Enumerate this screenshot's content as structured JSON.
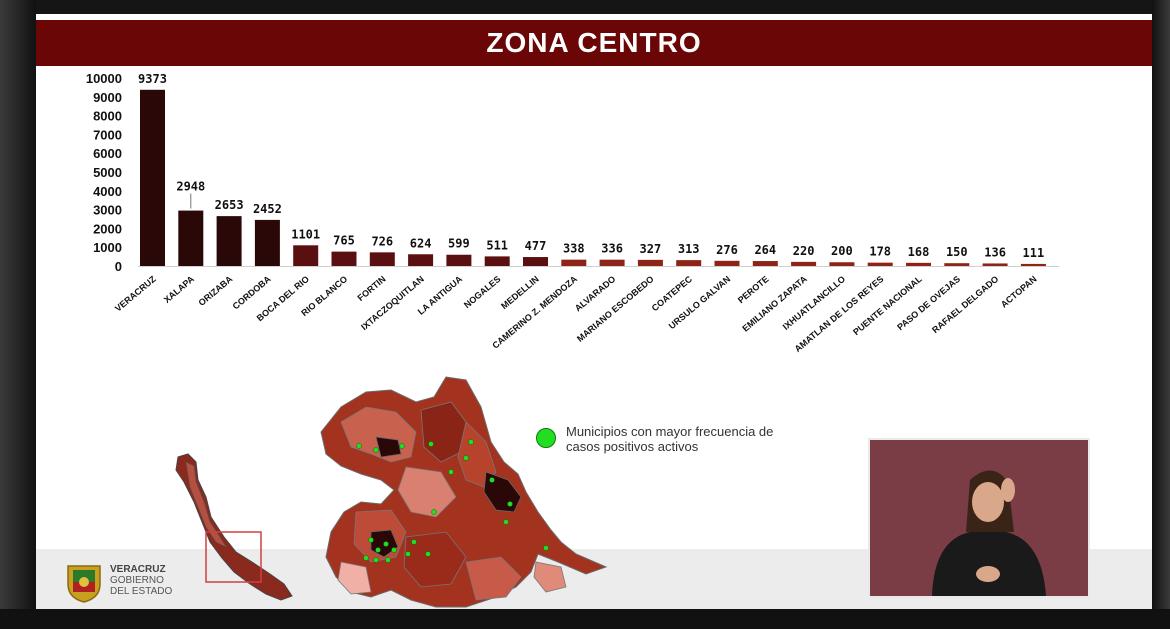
{
  "slide": {
    "title": "ZONA CENTRO"
  },
  "chart_data": {
    "type": "bar",
    "title": "ZONA CENTRO",
    "xlabel": "",
    "ylabel": "",
    "ylim": [
      0,
      10000
    ],
    "yticks": [
      0,
      1000,
      2000,
      3000,
      4000,
      5000,
      6000,
      7000,
      8000,
      9000,
      10000
    ],
    "grid": false,
    "legend": "none",
    "categories": [
      "VERACRUZ",
      "XALAPA",
      "ORIZABA",
      "CORDOBA",
      "BOCA DEL RIO",
      "RIO BLANCO",
      "FORTIN",
      "IXTACZOQUITLAN",
      "LA ANTIGUA",
      "NOGALES",
      "MEDELLIN",
      "CAMERINO Z. MENDOZA",
      "ALVARADO",
      "MARIANO ESCOBEDO",
      "COATEPEC",
      "URSULO GALVAN",
      "PEROTE",
      "EMILIANO ZAPATA",
      "IXHUATLANCILLO",
      "AMATLAN DE LOS REYES",
      "PUENTE NACIONAL",
      "PASO DE OVEJAS",
      "RAFAEL DELGADO",
      "ACTOPAN"
    ],
    "values": [
      9373,
      2948,
      2653,
      2452,
      1101,
      765,
      726,
      624,
      599,
      511,
      477,
      338,
      336,
      327,
      313,
      276,
      264,
      220,
      200,
      178,
      168,
      150,
      136,
      111
    ],
    "colors": {
      "dark": "#2b0808",
      "mid": "#5a1010",
      "light": "#8e2418"
    }
  },
  "map": {
    "legend_text": "Municipios con mayor frecuencia de casos positivos activos",
    "legend_color": "#22dd22"
  },
  "footer": {
    "logo_line1": "VERACRUZ",
    "logo_line2": "GOBIERNO",
    "logo_line3": "DEL ESTADO"
  },
  "video": {
    "description_icon": "sign-language-interpreter"
  }
}
